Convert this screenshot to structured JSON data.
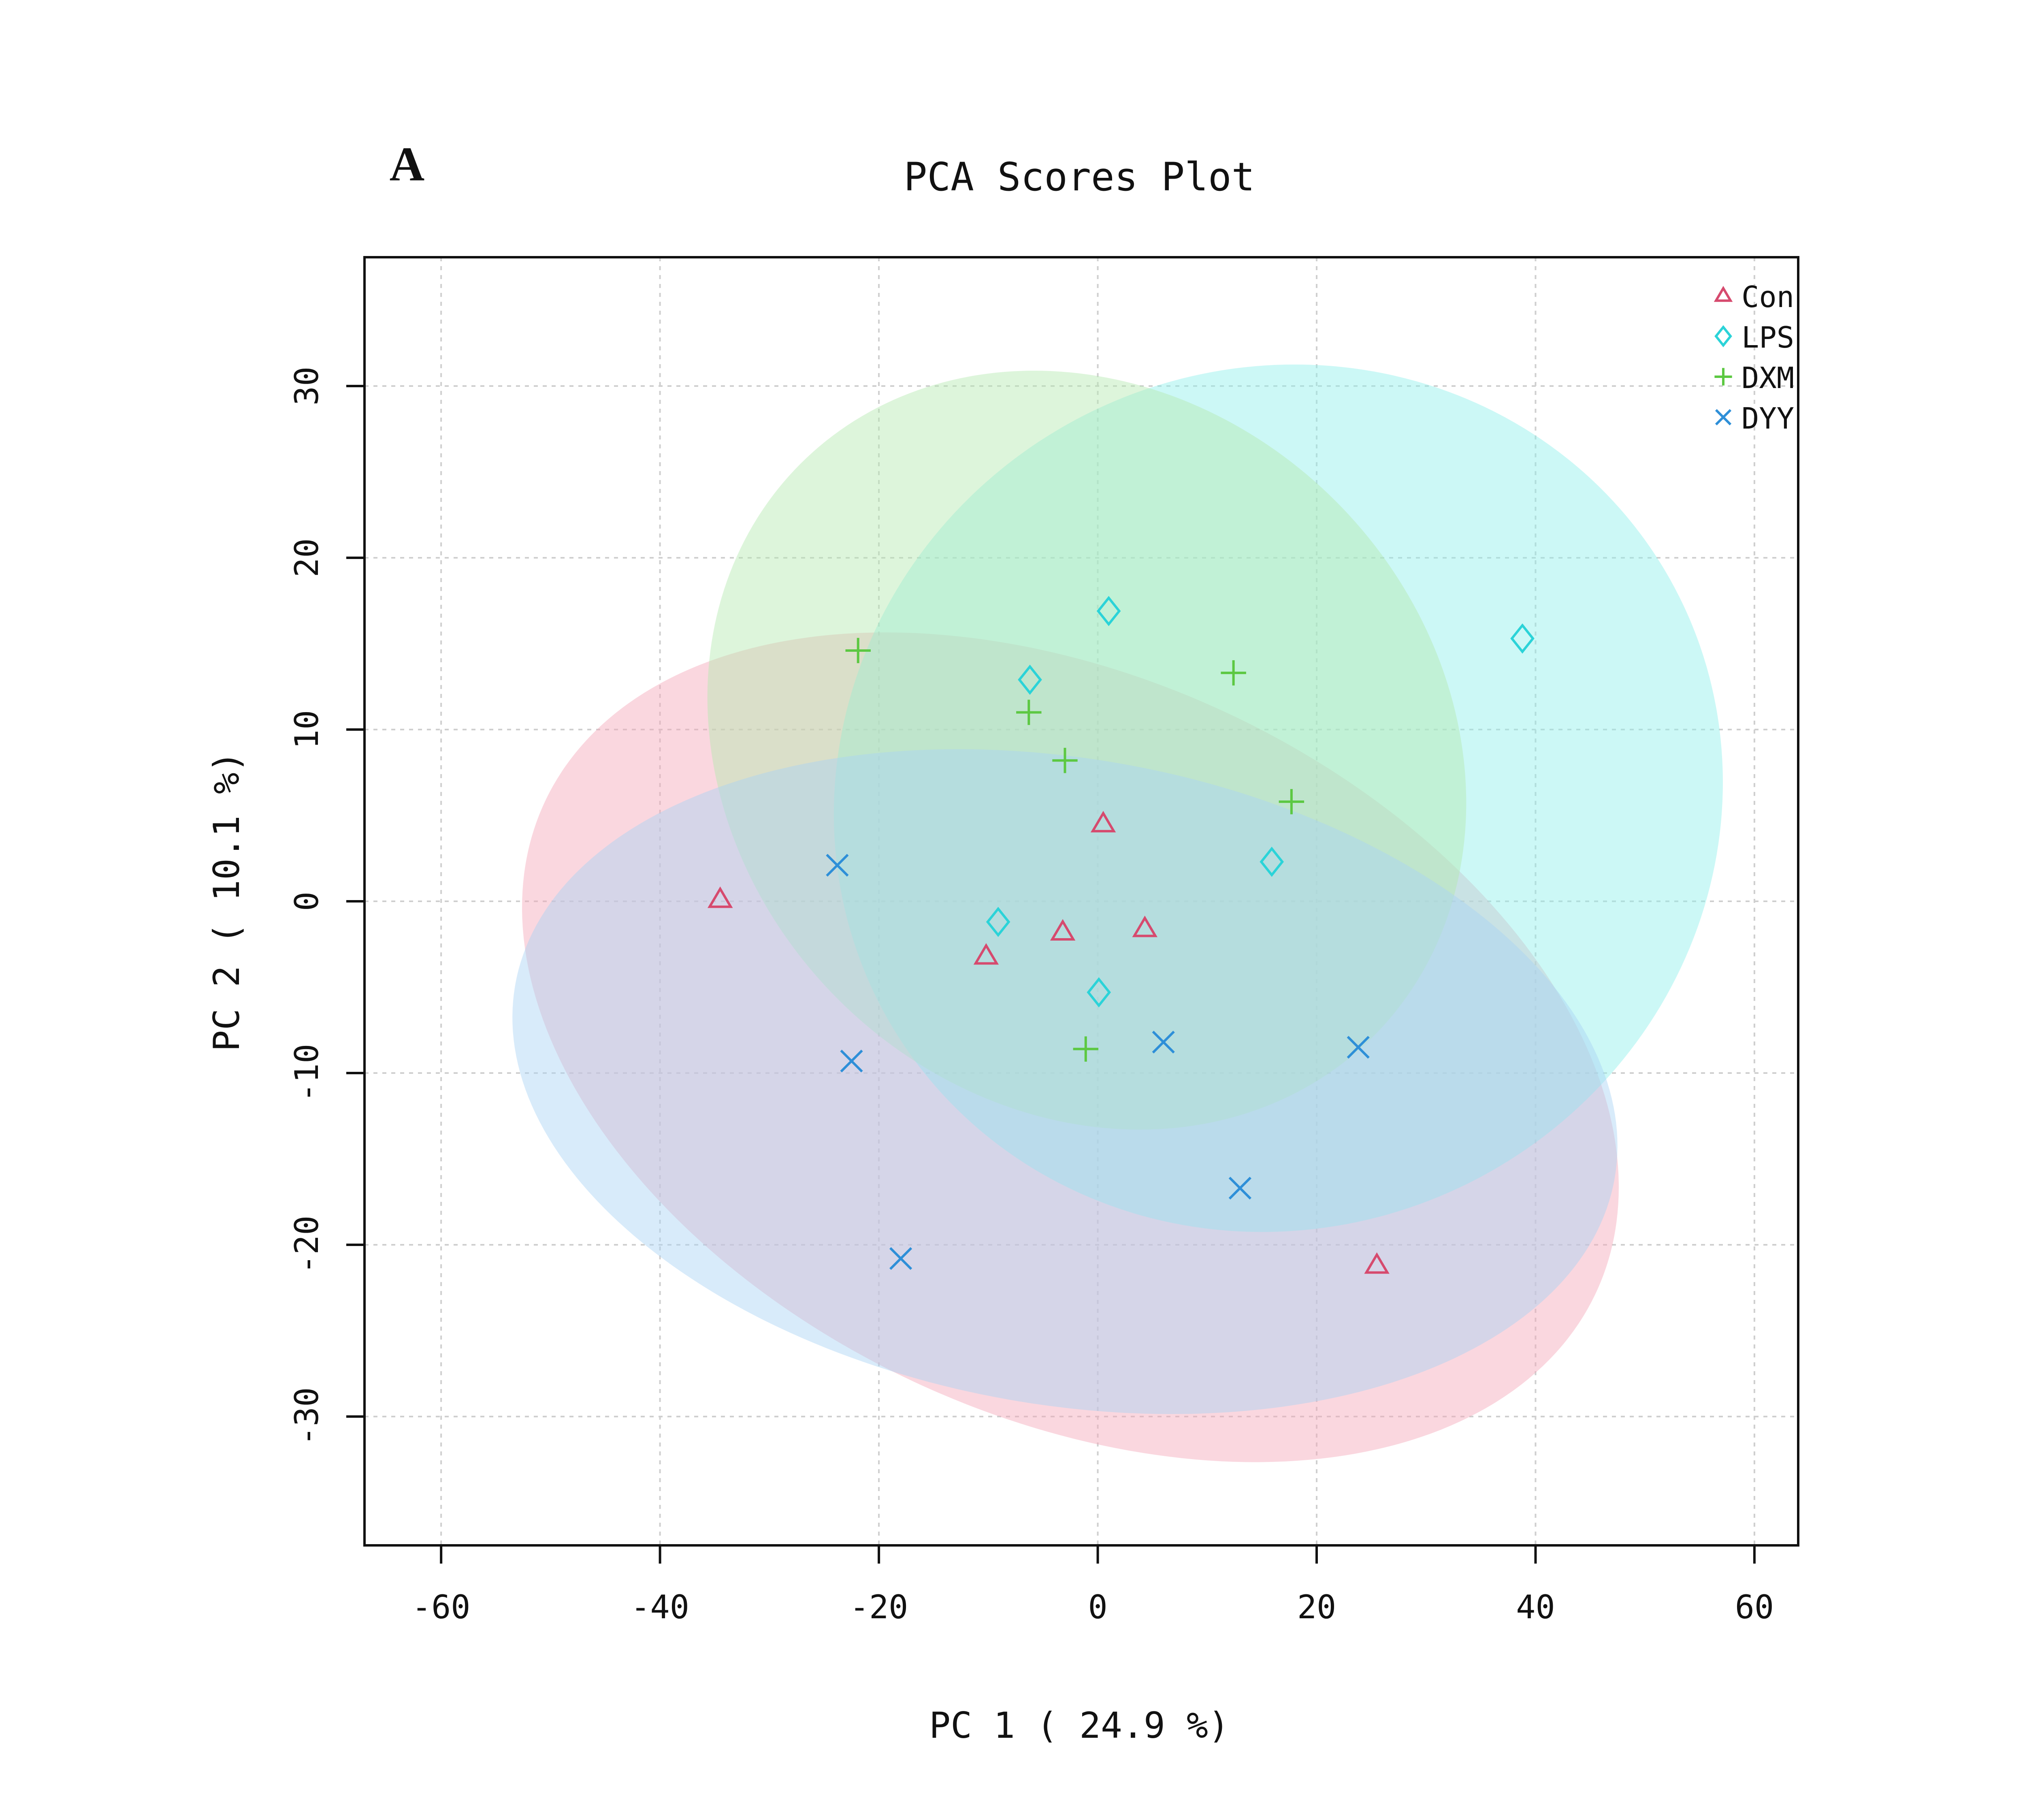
{
  "panel_label": "A",
  "chart_data": {
    "type": "scatter",
    "title": "PCA Scores Plot",
    "xlabel": "PC 1 ( 24.9 %)",
    "ylabel": "PC 2 ( 10.1 %)",
    "xlim": [
      -67,
      64
    ],
    "ylim": [
      -37.5,
      37.5
    ],
    "xticks": [
      -60,
      -40,
      -20,
      0,
      20,
      40,
      60
    ],
    "yticks": [
      -30,
      -20,
      -10,
      0,
      10,
      20,
      30
    ],
    "grid": true,
    "legend_position": "top-right",
    "series": [
      {
        "name": "Con",
        "marker": "triangle",
        "color": "#d64a6e",
        "ellipse_color": "#f3a7b8",
        "points": [
          [
            -34.5,
            0.1
          ],
          [
            0.5,
            4.5
          ],
          [
            -10.2,
            -3.2
          ],
          [
            -3.2,
            -1.8
          ],
          [
            4.3,
            -1.6
          ],
          [
            25.5,
            -21.2
          ]
        ],
        "ellipse": {
          "cx": -2.5,
          "cy": -8.5,
          "rx": 53,
          "ry": 21.5,
          "angle_deg": -25
        }
      },
      {
        "name": "LPS",
        "marker": "diamond",
        "color": "#2bd3d8",
        "ellipse_color": "#8ef0ec",
        "points": [
          [
            1.0,
            16.9
          ],
          [
            -6.2,
            12.9
          ],
          [
            38.8,
            15.3
          ],
          [
            15.9,
            2.3
          ],
          [
            -9.1,
            -1.2
          ],
          [
            0.1,
            -5.3
          ]
        ],
        "ellipse": {
          "cx": 16.5,
          "cy": 6.0,
          "rx": 41,
          "ry": 25,
          "angle_deg": 28
        }
      },
      {
        "name": "DXM",
        "marker": "plus",
        "color": "#5cc842",
        "ellipse_color": "#b4e8b0",
        "points": [
          [
            -21.9,
            14.6
          ],
          [
            -6.3,
            11.0
          ],
          [
            -3.0,
            8.2
          ],
          [
            12.4,
            13.3
          ],
          [
            17.7,
            5.8
          ],
          [
            -1.1,
            -8.6
          ]
        ],
        "ellipse": {
          "cx": -1.0,
          "cy": 8.8,
          "rx": 37,
          "ry": 20.5,
          "angle_deg": -45
        }
      },
      {
        "name": "DYY",
        "marker": "x",
        "color": "#2e8fd8",
        "ellipse_color": "#a9d2f5",
        "points": [
          [
            -23.8,
            2.1
          ],
          [
            -22.5,
            -9.3
          ],
          [
            -18.0,
            -20.8
          ],
          [
            6.0,
            -8.2
          ],
          [
            13.0,
            -16.7
          ],
          [
            23.8,
            -8.5
          ]
        ],
        "ellipse": {
          "cx": -3.0,
          "cy": -10.5,
          "rx": 51,
          "ry": 18.8,
          "angle_deg": -10
        }
      }
    ]
  }
}
